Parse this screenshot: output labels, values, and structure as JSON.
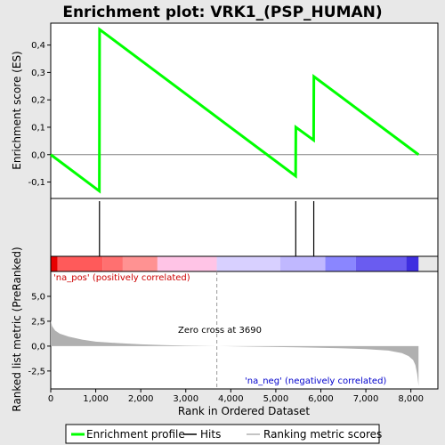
{
  "chart_data": {
    "type": "line",
    "title": "Enrichment plot: VRK1_(PSP_HUMAN)",
    "es_panel": {
      "ylabel": "Enrichment score (ES)",
      "ylim": [
        -0.16,
        0.48
      ],
      "yticks": [
        -0.1,
        0.0,
        0.1,
        0.2,
        0.3,
        0.4
      ],
      "ytick_labels": [
        "-0,1",
        "0,0",
        "0,1",
        "0,2",
        "0,3",
        "0,4"
      ],
      "series": [
        {
          "name": "Enrichment profile",
          "color": "#00ff00",
          "x": [
            0,
            1080,
            1085,
            5440,
            5445,
            5840,
            5845,
            8170
          ],
          "y": [
            0.0,
            -0.133,
            0.457,
            -0.078,
            0.1,
            0.053,
            0.285,
            0.0
          ]
        }
      ]
    },
    "hits": {
      "name": "Hits",
      "x": [
        1083,
        5443,
        5843
      ]
    },
    "metric_panel": {
      "ylabel": "Ranked list metric (PreRanked)",
      "ylim": [
        -4.3,
        7.5
      ],
      "yticks": [
        -2.5,
        0.0,
        2.5,
        5.0
      ],
      "ytick_labels": [
        "-2,5",
        "0,0",
        "2,5",
        "5,0"
      ],
      "series_name": "Ranking metric scores",
      "x": [
        0,
        30,
        100,
        200,
        400,
        700,
        1000,
        1500,
        2000,
        2500,
        3000,
        3690,
        4500,
        5500,
        6500,
        7000,
        7500,
        7800,
        7950,
        8050,
        8100,
        8140,
        8170
      ],
      "y": [
        2.6,
        2.0,
        1.55,
        1.25,
        0.95,
        0.65,
        0.45,
        0.3,
        0.18,
        0.1,
        0.05,
        0.0,
        -0.05,
        -0.12,
        -0.22,
        -0.3,
        -0.45,
        -0.7,
        -1.0,
        -1.4,
        -1.9,
        -2.8,
        -4.0
      ]
    },
    "xaxis": {
      "label": "Rank in Ordered Dataset",
      "xlim": [
        0,
        8600
      ],
      "ticks": [
        0,
        1000,
        2000,
        3000,
        4000,
        5000,
        6000,
        7000,
        8000
      ],
      "tick_labels": [
        "0",
        "1,000",
        "2,000",
        "3,000",
        "4,000",
        "5,000",
        "6,000",
        "7,000",
        "8,000"
      ]
    },
    "colorbar_segments": [
      {
        "from": 0,
        "to": 150,
        "color": "#e80000"
      },
      {
        "from": 150,
        "to": 1150,
        "color": "#ff5a5a"
      },
      {
        "from": 1150,
        "to": 1600,
        "color": "#ff7070"
      },
      {
        "from": 1600,
        "to": 2370,
        "color": "#ff9292"
      },
      {
        "from": 2370,
        "to": 3690,
        "color": "#ffc4e6"
      },
      {
        "from": 3690,
        "to": 5100,
        "color": "#d8d0ff"
      },
      {
        "from": 5100,
        "to": 6100,
        "color": "#c0b8ff"
      },
      {
        "from": 6100,
        "to": 6780,
        "color": "#8a86ff"
      },
      {
        "from": 6780,
        "to": 7900,
        "color": "#6a5cf0"
      },
      {
        "from": 7900,
        "to": 8170,
        "color": "#3e2ee0"
      }
    ],
    "annotations": {
      "pos_label": "'na_pos' (positively correlated)",
      "neg_label": "'na_neg' (negatively correlated)",
      "zero_cross": "Zero cross at 3690",
      "zero_cross_x": 3690
    },
    "legend": {
      "placement": "bottom",
      "items": [
        "Enrichment profile",
        "Hits",
        "Ranking metric scores"
      ]
    }
  }
}
